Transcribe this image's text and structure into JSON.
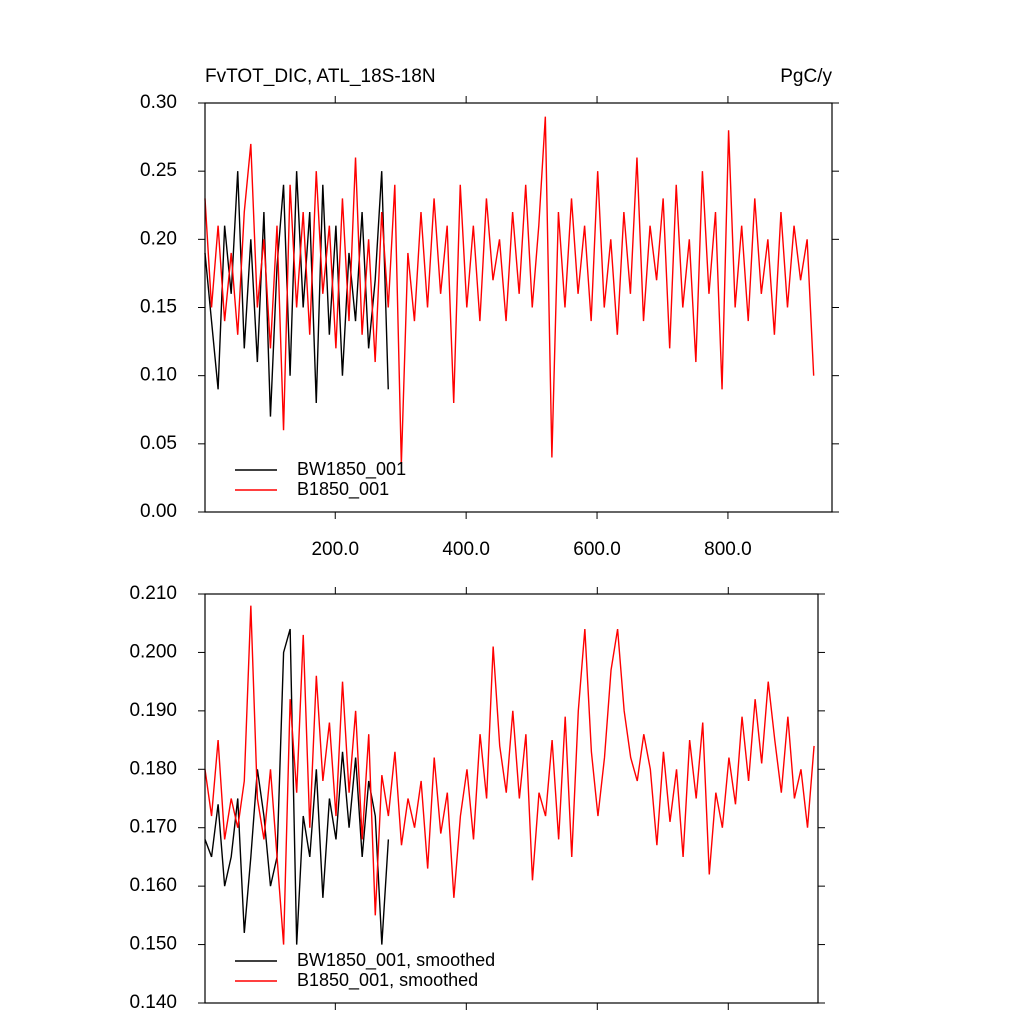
{
  "chart_data": [
    {
      "type": "line",
      "left_title": "FvTOT_DIC, ATL_18S-18N",
      "right_title": "PgC/y",
      "xlim": [
        1,
        959
      ],
      "ylim": [
        0,
        0.3
      ],
      "xticks": [
        {
          "value": 200,
          "label": "200.0"
        },
        {
          "value": 400,
          "label": "400.0"
        },
        {
          "value": 600,
          "label": "600.0"
        },
        {
          "value": 800,
          "label": "800.0"
        }
      ],
      "yticks": [
        {
          "value": 0,
          "label": "0.00"
        },
        0.05,
        {
          "value": 0.1,
          "label": "0.10"
        },
        0.15,
        {
          "value": 0.2,
          "label": "0.20"
        },
        0.25,
        {
          "value": 0.3,
          "label": "0.30"
        }
      ],
      "legend": "lower left",
      "series": [
        {
          "name": "BW1850_001",
          "color": "#000000",
          "x": [
            1,
            11,
            21,
            31,
            41,
            51,
            61,
            71,
            81,
            91,
            101,
            111,
            121,
            131,
            141,
            151,
            161,
            171,
            181,
            191,
            201,
            211,
            221,
            231,
            241,
            251,
            261,
            271,
            281
          ],
          "values": [
            0.19,
            0.14,
            0.09,
            0.21,
            0.16,
            0.25,
            0.12,
            0.2,
            0.11,
            0.22,
            0.07,
            0.18,
            0.24,
            0.1,
            0.25,
            0.15,
            0.22,
            0.08,
            0.24,
            0.13,
            0.21,
            0.1,
            0.19,
            0.14,
            0.22,
            0.12,
            0.17,
            0.25,
            0.09
          ]
        },
        {
          "name": "B1850_001",
          "color": "#ff0000",
          "x": [
            1,
            11,
            21,
            31,
            41,
            51,
            61,
            71,
            81,
            91,
            101,
            111,
            121,
            131,
            141,
            151,
            161,
            171,
            181,
            191,
            201,
            211,
            221,
            231,
            241,
            251,
            261,
            271,
            281,
            291,
            301,
            311,
            321,
            331,
            341,
            351,
            361,
            371,
            381,
            391,
            401,
            411,
            421,
            431,
            441,
            451,
            461,
            471,
            481,
            491,
            501,
            511,
            521,
            531,
            541,
            551,
            561,
            571,
            581,
            591,
            601,
            611,
            621,
            631,
            641,
            651,
            661,
            671,
            681,
            691,
            701,
            711,
            721,
            731,
            741,
            751,
            761,
            771,
            781,
            791,
            801,
            811,
            821,
            831,
            841,
            851,
            861,
            871,
            881,
            891,
            901,
            911,
            921,
            931
          ],
          "values": [
            0.23,
            0.15,
            0.21,
            0.14,
            0.19,
            0.13,
            0.22,
            0.27,
            0.15,
            0.2,
            0.12,
            0.21,
            0.06,
            0.24,
            0.15,
            0.22,
            0.13,
            0.25,
            0.16,
            0.21,
            0.12,
            0.23,
            0.14,
            0.26,
            0.13,
            0.2,
            0.11,
            0.22,
            0.15,
            0.24,
            0.035,
            0.19,
            0.14,
            0.22,
            0.15,
            0.23,
            0.16,
            0.21,
            0.08,
            0.24,
            0.15,
            0.21,
            0.14,
            0.23,
            0.17,
            0.2,
            0.14,
            0.22,
            0.16,
            0.24,
            0.15,
            0.21,
            0.29,
            0.04,
            0.22,
            0.15,
            0.23,
            0.16,
            0.21,
            0.14,
            0.25,
            0.15,
            0.2,
            0.13,
            0.22,
            0.16,
            0.26,
            0.14,
            0.21,
            0.17,
            0.23,
            0.12,
            0.24,
            0.15,
            0.2,
            0.11,
            0.25,
            0.16,
            0.22,
            0.09,
            0.28,
            0.15,
            0.21,
            0.14,
            0.23,
            0.16,
            0.2,
            0.13,
            0.22,
            0.15,
            0.21,
            0.17,
            0.2,
            0.1
          ]
        }
      ]
    },
    {
      "type": "line",
      "xlim": [
        1,
        937
      ],
      "ylim": [
        0.14,
        0.21
      ],
      "xticks": [
        200,
        400,
        600,
        800
      ],
      "yticks": [
        {
          "value": 0.14,
          "label": "0.140"
        },
        {
          "value": 0.15,
          "label": "0.150"
        },
        {
          "value": 0.16,
          "label": "0.160"
        },
        {
          "value": 0.17,
          "label": "0.170"
        },
        {
          "value": 0.18,
          "label": "0.180"
        },
        {
          "value": 0.19,
          "label": "0.190"
        },
        {
          "value": 0.2,
          "label": "0.200"
        },
        {
          "value": 0.21,
          "label": "0.210"
        }
      ],
      "legend": "lower left",
      "series": [
        {
          "name": "BW1850_001, smoothed",
          "color": "#000000",
          "x": [
            1,
            11,
            21,
            31,
            41,
            51,
            61,
            71,
            81,
            91,
            101,
            111,
            121,
            131,
            141,
            151,
            161,
            171,
            181,
            191,
            201,
            211,
            221,
            231,
            241,
            251,
            261,
            271,
            281
          ],
          "values": [
            0.168,
            0.165,
            0.174,
            0.16,
            0.165,
            0.175,
            0.152,
            0.165,
            0.18,
            0.172,
            0.16,
            0.165,
            0.2,
            0.204,
            0.15,
            0.172,
            0.165,
            0.18,
            0.158,
            0.175,
            0.168,
            0.183,
            0.17,
            0.182,
            0.165,
            0.178,
            0.172,
            0.15,
            0.168
          ]
        },
        {
          "name": "B1850_001, smoothed",
          "color": "#ff0000",
          "x": [
            1,
            11,
            21,
            31,
            41,
            51,
            61,
            71,
            81,
            91,
            101,
            111,
            121,
            131,
            141,
            151,
            161,
            171,
            181,
            191,
            201,
            211,
            221,
            231,
            241,
            251,
            261,
            271,
            281,
            291,
            301,
            311,
            321,
            331,
            341,
            351,
            361,
            371,
            381,
            391,
            401,
            411,
            421,
            431,
            441,
            451,
            461,
            471,
            481,
            491,
            501,
            511,
            521,
            531,
            541,
            551,
            561,
            571,
            581,
            591,
            601,
            611,
            621,
            631,
            641,
            651,
            661,
            671,
            681,
            691,
            701,
            711,
            721,
            731,
            741,
            751,
            761,
            771,
            781,
            791,
            801,
            811,
            821,
            831,
            841,
            851,
            861,
            871,
            881,
            891,
            901,
            911,
            921,
            931
          ],
          "values": [
            0.18,
            0.172,
            0.185,
            0.168,
            0.175,
            0.17,
            0.178,
            0.208,
            0.175,
            0.168,
            0.18,
            0.165,
            0.15,
            0.192,
            0.176,
            0.203,
            0.17,
            0.196,
            0.178,
            0.188,
            0.172,
            0.195,
            0.176,
            0.19,
            0.168,
            0.186,
            0.155,
            0.179,
            0.172,
            0.183,
            0.167,
            0.175,
            0.17,
            0.178,
            0.163,
            0.182,
            0.169,
            0.176,
            0.158,
            0.172,
            0.18,
            0.168,
            0.186,
            0.175,
            0.201,
            0.184,
            0.176,
            0.19,
            0.175,
            0.186,
            0.161,
            0.176,
            0.172,
            0.185,
            0.168,
            0.189,
            0.165,
            0.19,
            0.204,
            0.183,
            0.172,
            0.182,
            0.197,
            0.204,
            0.19,
            0.182,
            0.178,
            0.186,
            0.18,
            0.167,
            0.183,
            0.171,
            0.18,
            0.165,
            0.185,
            0.175,
            0.188,
            0.162,
            0.176,
            0.17,
            0.182,
            0.174,
            0.189,
            0.178,
            0.192,
            0.181,
            0.195,
            0.185,
            0.176,
            0.189,
            0.175,
            0.18,
            0.17,
            0.184
          ]
        }
      ]
    }
  ]
}
